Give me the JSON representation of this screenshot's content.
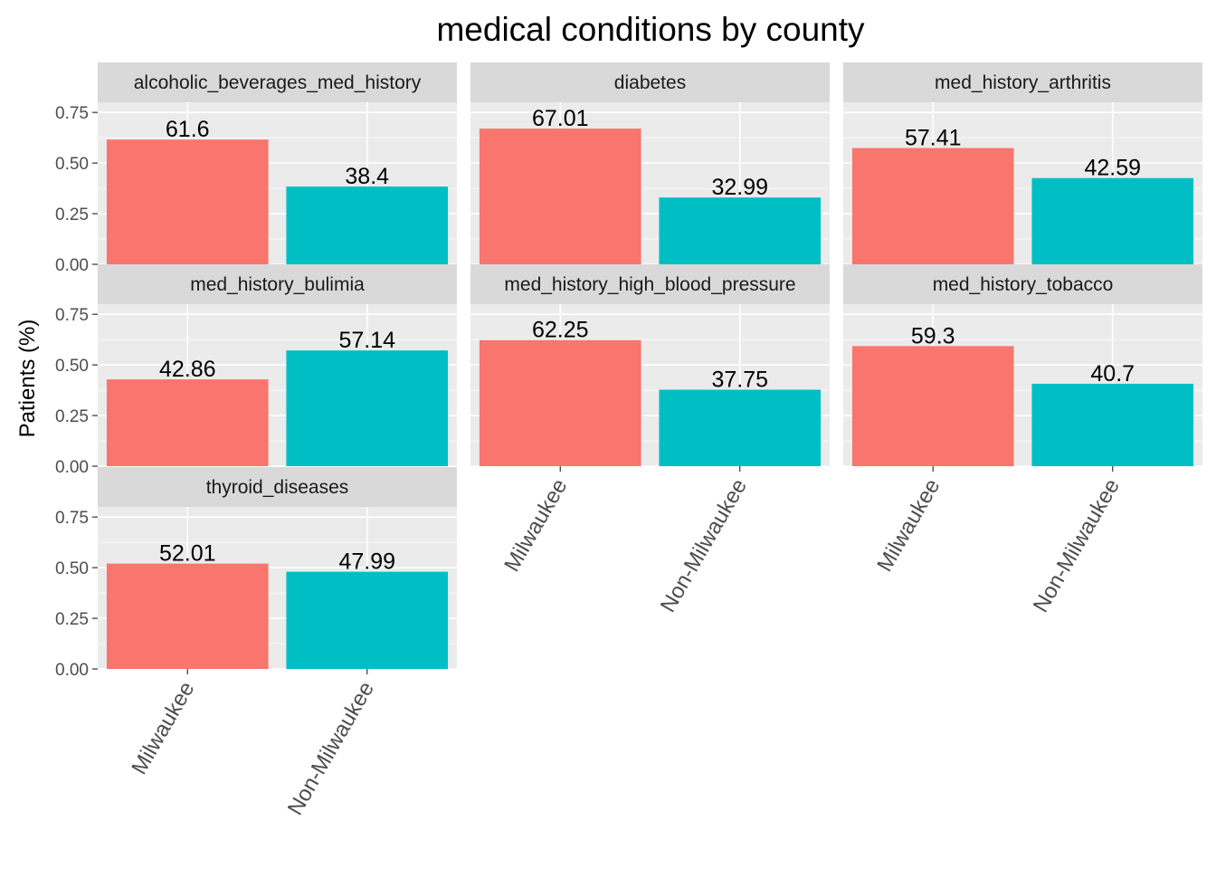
{
  "chart_data": {
    "type": "bar",
    "title": "medical conditions by county",
    "ylabel": "Patients (%)",
    "xlabel": "",
    "categories": [
      "Milwaukee",
      "Non-Milwaukee"
    ],
    "ylim": [
      0,
      0.8
    ],
    "yticks": [
      0,
      0.25,
      0.5,
      0.75
    ],
    "ytick_labels": [
      "0.00",
      "0.25",
      "0.50",
      "0.75"
    ],
    "grid": true,
    "legend": "none",
    "colors": [
      "#F8766D",
      "#00BFC4"
    ],
    "panel_background": "#EBEBEB",
    "strip_background": "#D9D9D9",
    "facets": [
      {
        "name": "alcoholic_beverages_med_history",
        "values": [
          0.616,
          0.384
        ],
        "labels": [
          "61.6",
          "38.4"
        ]
      },
      {
        "name": "diabetes",
        "values": [
          0.6701,
          0.3299
        ],
        "labels": [
          "67.01",
          "32.99"
        ]
      },
      {
        "name": "med_history_arthritis",
        "values": [
          0.5741,
          0.4259
        ],
        "labels": [
          "57.41",
          "42.59"
        ]
      },
      {
        "name": "med_history_bulimia",
        "values": [
          0.4286,
          0.5714
        ],
        "labels": [
          "42.86",
          "57.14"
        ]
      },
      {
        "name": "med_history_high_blood_pressure",
        "values": [
          0.6225,
          0.3775
        ],
        "labels": [
          "62.25",
          "37.75"
        ]
      },
      {
        "name": "med_history_tobacco",
        "values": [
          0.593,
          0.407
        ],
        "labels": [
          "59.3",
          "40.7"
        ]
      },
      {
        "name": "thyroid_diseases",
        "values": [
          0.5201,
          0.4799
        ],
        "labels": [
          "52.01",
          "47.99"
        ]
      }
    ]
  }
}
